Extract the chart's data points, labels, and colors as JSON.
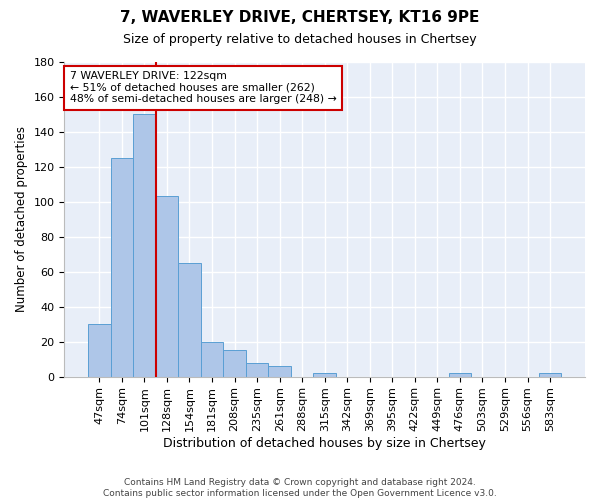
{
  "title_line1": "7, WAVERLEY DRIVE, CHERTSEY, KT16 9PE",
  "title_line2": "Size of property relative to detached houses in Chertsey",
  "xlabel": "Distribution of detached houses by size in Chertsey",
  "ylabel": "Number of detached properties",
  "footer": "Contains HM Land Registry data © Crown copyright and database right 2024.\nContains public sector information licensed under the Open Government Licence v3.0.",
  "bar_labels": [
    "47sqm",
    "74sqm",
    "101sqm",
    "128sqm",
    "154sqm",
    "181sqm",
    "208sqm",
    "235sqm",
    "261sqm",
    "288sqm",
    "315sqm",
    "342sqm",
    "369sqm",
    "395sqm",
    "422sqm",
    "449sqm",
    "476sqm",
    "503sqm",
    "529sqm",
    "556sqm",
    "583sqm"
  ],
  "bar_values": [
    30,
    125,
    150,
    103,
    65,
    20,
    15,
    8,
    6,
    0,
    2,
    0,
    0,
    0,
    0,
    0,
    2,
    0,
    0,
    0,
    2
  ],
  "bar_color": "#aec6e8",
  "bar_edge_color": "#5a9fd4",
  "background_color": "#e8eef8",
  "grid_color": "#ffffff",
  "ylim": [
    0,
    180
  ],
  "yticks": [
    0,
    20,
    40,
    60,
    80,
    100,
    120,
    140,
    160,
    180
  ],
  "annotation_text": "7 WAVERLEY DRIVE: 122sqm\n← 51% of detached houses are smaller (262)\n48% of semi-detached houses are larger (248) →",
  "annotation_box_color": "#ffffff",
  "annotation_box_edge_color": "#cc0000",
  "red_line_color": "#cc0000",
  "title_fontsize": 11,
  "subtitle_fontsize": 9,
  "ylabel_fontsize": 8.5,
  "xlabel_fontsize": 9,
  "tick_fontsize": 8,
  "ann_fontsize": 7.8,
  "footer_fontsize": 6.5
}
